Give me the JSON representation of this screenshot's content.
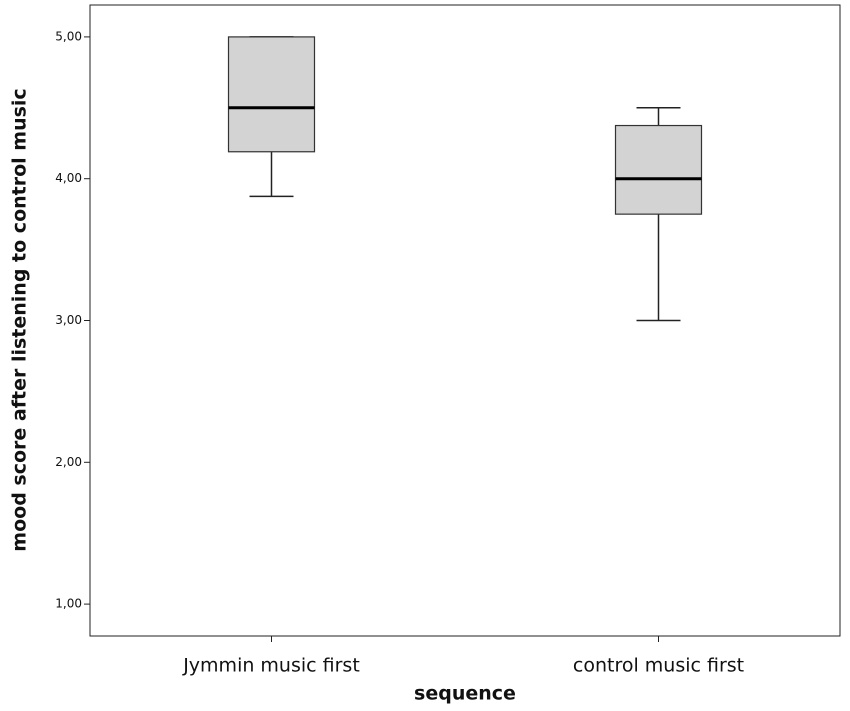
{
  "chart_data": {
    "type": "box",
    "x_label": "sequence",
    "y_label": "mood score after listening to control music",
    "categories": [
      "Jymmin music first",
      "control music first"
    ],
    "min": [
      3.875,
      3.0
    ],
    "q1": [
      4.19,
      3.75
    ],
    "median": [
      4.5,
      4.0
    ],
    "q3": [
      5.0,
      4.375
    ],
    "max": [
      5.0,
      4.5
    ],
    "color": "#d3d3d3",
    "ylim": [
      0.775,
      5.225
    ],
    "yticks": [
      {
        "value": 1,
        "label": "1,00"
      },
      {
        "value": 2,
        "label": "2,00"
      },
      {
        "value": 3,
        "label": "3,00"
      },
      {
        "value": 4,
        "label": "4,00"
      },
      {
        "value": 5,
        "label": "5,00"
      }
    ]
  }
}
